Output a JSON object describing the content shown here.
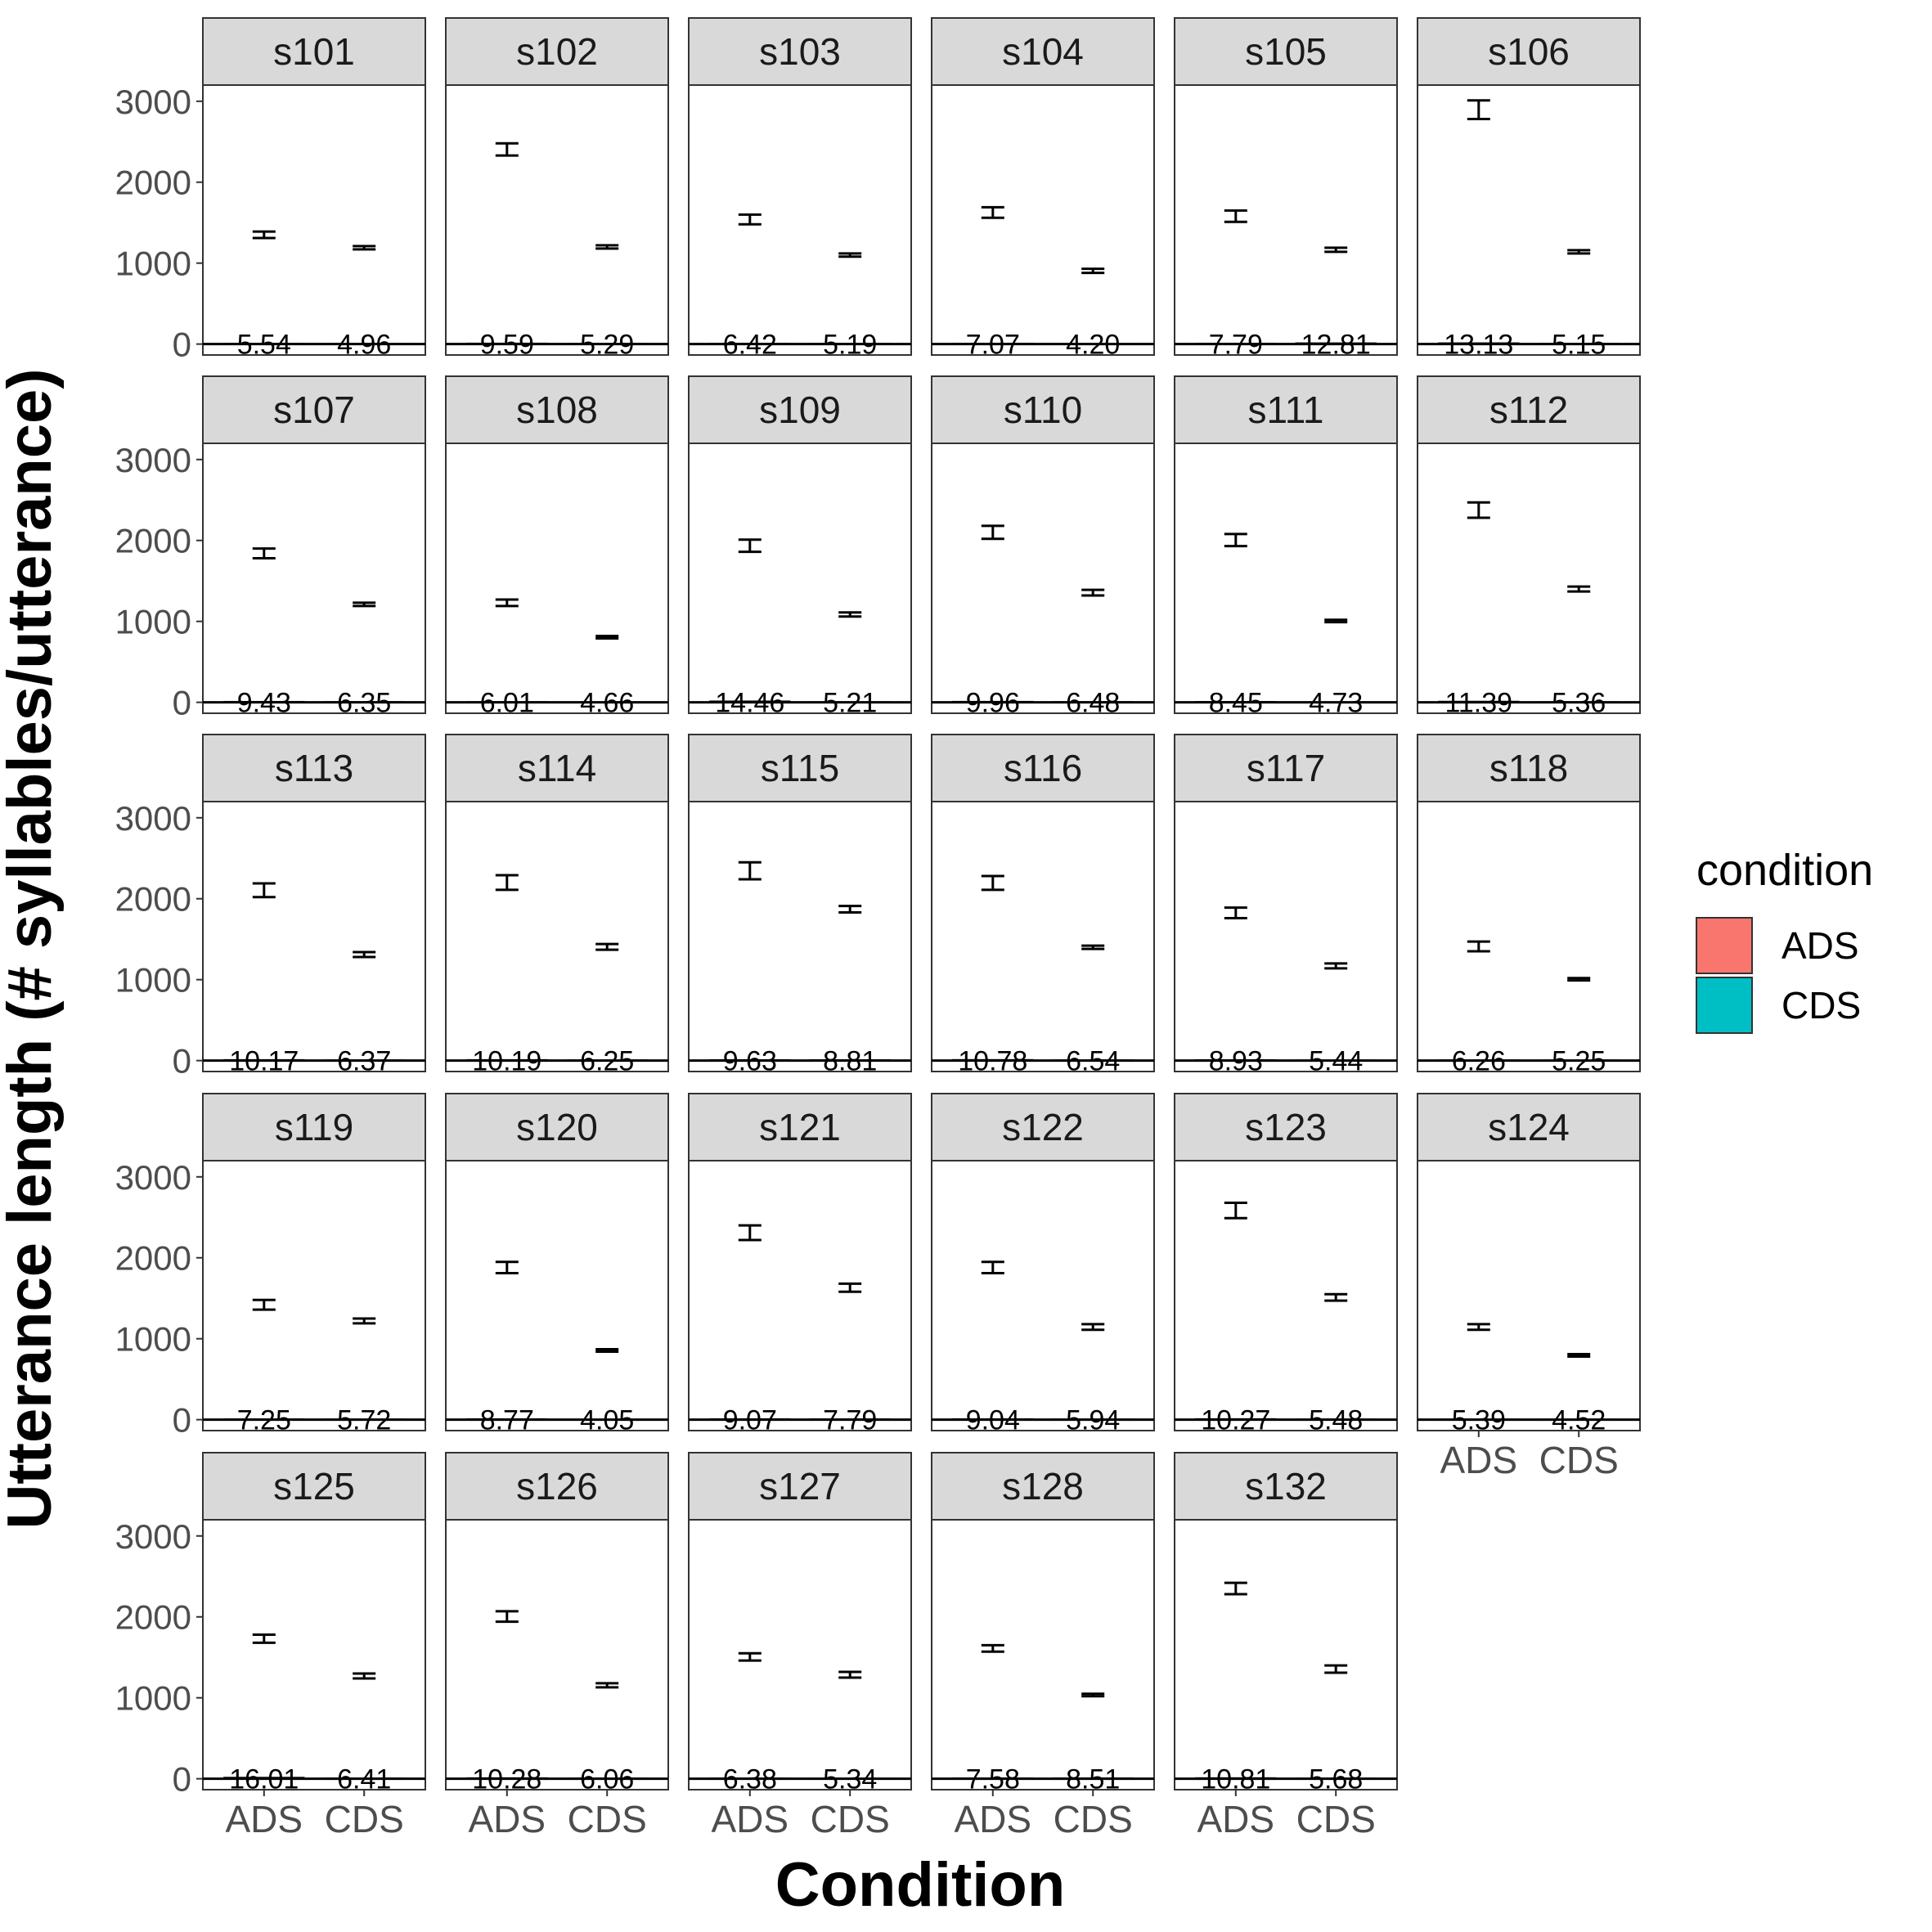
{
  "chart_data": {
    "type": "bar",
    "facet_by": "participant",
    "facet_columns": 6,
    "xlabel": "Condition",
    "ylabel": "Utterance length (# syllables/utterance)",
    "categories": [
      "ADS",
      "CDS"
    ],
    "ylim": [
      0,
      3200
    ],
    "yticks": [
      0,
      1000,
      2000,
      3000
    ],
    "legend": {
      "title": "condition",
      "position": "right",
      "items": [
        {
          "label": "ADS",
          "color": "#F8766D"
        },
        {
          "label": "CDS",
          "color": "#00BFC4"
        }
      ]
    },
    "colors": {
      "ADS": "#F8766D",
      "CDS": "#00BFC4"
    },
    "panels": [
      {
        "id": "s101",
        "values": [
          5.54,
          4.96
        ],
        "bar_labels": [
          "5.54",
          "4.96"
        ],
        "error": {
          "ADS": [
            1310,
            1390
          ],
          "CDS": [
            1170,
            1210
          ]
        }
      },
      {
        "id": "s102",
        "values": [
          9.59,
          5.29
        ],
        "bar_labels": [
          "9.59",
          "5.29"
        ],
        "error": {
          "ADS": [
            2330,
            2480
          ],
          "CDS": [
            1180,
            1220
          ]
        }
      },
      {
        "id": "s103",
        "values": [
          6.42,
          5.19
        ],
        "bar_labels": [
          "6.42",
          "5.19"
        ],
        "error": {
          "ADS": [
            1480,
            1600
          ],
          "CDS": [
            1080,
            1120
          ]
        }
      },
      {
        "id": "s104",
        "values": [
          7.07,
          4.2
        ],
        "bar_labels": [
          "7.07",
          "4.20"
        ],
        "error": {
          "ADS": [
            1560,
            1690
          ],
          "CDS": [
            880,
            930
          ]
        }
      },
      {
        "id": "s105",
        "values": [
          7.79,
          12.81
        ],
        "bar_labels": [
          "7.79",
          "12.81"
        ],
        "error": {
          "ADS": [
            1510,
            1650
          ],
          "CDS": [
            1140,
            1190
          ]
        }
      },
      {
        "id": "s106",
        "values": [
          13.13,
          5.15
        ],
        "bar_labels": [
          "13.13",
          "5.15"
        ],
        "error": {
          "ADS": [
            2780,
            3010
          ],
          "CDS": [
            1120,
            1160
          ]
        }
      },
      {
        "id": "s107",
        "values": [
          9.43,
          6.35
        ],
        "bar_labels": [
          "9.43",
          "6.35"
        ],
        "error": {
          "ADS": [
            1780,
            1900
          ],
          "CDS": [
            1190,
            1230
          ]
        }
      },
      {
        "id": "s108",
        "values": [
          6.01,
          4.66
        ],
        "bar_labels": [
          "6.01",
          "4.66"
        ],
        "error": {
          "ADS": [
            1190,
            1270
          ],
          "CDS": [
            790,
            820
          ]
        }
      },
      {
        "id": "s109",
        "values": [
          14.46,
          5.21
        ],
        "bar_labels": [
          "14.46",
          "5.21"
        ],
        "error": {
          "ADS": [
            1860,
            2010
          ],
          "CDS": [
            1060,
            1110
          ]
        }
      },
      {
        "id": "s110",
        "values": [
          9.96,
          6.48
        ],
        "bar_labels": [
          "9.96",
          "6.48"
        ],
        "error": {
          "ADS": [
            2020,
            2180
          ],
          "CDS": [
            1320,
            1390
          ]
        }
      },
      {
        "id": "s111",
        "values": [
          8.45,
          4.73
        ],
        "bar_labels": [
          "8.45",
          "4.73"
        ],
        "error": {
          "ADS": [
            1930,
            2080
          ],
          "CDS": [
            990,
            1020
          ]
        }
      },
      {
        "id": "s112",
        "values": [
          11.39,
          5.36
        ],
        "bar_labels": [
          "11.39",
          "5.36"
        ],
        "error": {
          "ADS": [
            2280,
            2470
          ],
          "CDS": [
            1370,
            1430
          ]
        }
      },
      {
        "id": "s113",
        "values": [
          10.17,
          6.37
        ],
        "bar_labels": [
          "10.17",
          "6.37"
        ],
        "error": {
          "ADS": [
            2020,
            2190
          ],
          "CDS": [
            1280,
            1340
          ]
        }
      },
      {
        "id": "s114",
        "values": [
          10.19,
          6.25
        ],
        "bar_labels": [
          "10.19",
          "6.25"
        ],
        "error": {
          "ADS": [
            2110,
            2290
          ],
          "CDS": [
            1370,
            1440
          ]
        }
      },
      {
        "id": "s115",
        "values": [
          9.63,
          8.81
        ],
        "bar_labels": [
          "9.63",
          "8.81"
        ],
        "error": {
          "ADS": [
            2240,
            2450
          ],
          "CDS": [
            1830,
            1910
          ]
        }
      },
      {
        "id": "s116",
        "values": [
          10.78,
          6.54
        ],
        "bar_labels": [
          "10.78",
          "6.54"
        ],
        "error": {
          "ADS": [
            2110,
            2280
          ],
          "CDS": [
            1380,
            1420
          ]
        }
      },
      {
        "id": "s117",
        "values": [
          8.93,
          5.44
        ],
        "bar_labels": [
          "8.93",
          "5.44"
        ],
        "error": {
          "ADS": [
            1760,
            1890
          ],
          "CDS": [
            1140,
            1200
          ]
        }
      },
      {
        "id": "s118",
        "values": [
          6.26,
          5.25
        ],
        "bar_labels": [
          "6.26",
          "5.25"
        ],
        "error": {
          "ADS": [
            1350,
            1470
          ],
          "CDS": [
            990,
            1020
          ]
        }
      },
      {
        "id": "s119",
        "values": [
          7.25,
          5.72
        ],
        "bar_labels": [
          "7.25",
          "5.72"
        ],
        "error": {
          "ADS": [
            1360,
            1480
          ],
          "CDS": [
            1190,
            1250
          ]
        }
      },
      {
        "id": "s120",
        "values": [
          8.77,
          4.05
        ],
        "bar_labels": [
          "8.77",
          "4.05"
        ],
        "error": {
          "ADS": [
            1810,
            1950
          ],
          "CDS": [
            840,
            870
          ]
        }
      },
      {
        "id": "s121",
        "values": [
          9.07,
          7.79
        ],
        "bar_labels": [
          "9.07",
          "7.79"
        ],
        "error": {
          "ADS": [
            2220,
            2400
          ],
          "CDS": [
            1580,
            1680
          ]
        }
      },
      {
        "id": "s122",
        "values": [
          9.04,
          5.94
        ],
        "bar_labels": [
          "9.04",
          "5.94"
        ],
        "error": {
          "ADS": [
            1810,
            1950
          ],
          "CDS": [
            1110,
            1180
          ]
        }
      },
      {
        "id": "s123",
        "values": [
          10.27,
          5.48
        ],
        "bar_labels": [
          "10.27",
          "5.48"
        ],
        "error": {
          "ADS": [
            2490,
            2680
          ],
          "CDS": [
            1470,
            1550
          ]
        }
      },
      {
        "id": "s124",
        "values": [
          5.39,
          4.52
        ],
        "bar_labels": [
          "5.39",
          "4.52"
        ],
        "error": {
          "ADS": [
            1110,
            1180
          ],
          "CDS": [
            780,
            810
          ]
        }
      },
      {
        "id": "s125",
        "values": [
          16.01,
          6.41
        ],
        "bar_labels": [
          "16.01",
          "6.41"
        ],
        "error": {
          "ADS": [
            1680,
            1780
          ],
          "CDS": [
            1240,
            1300
          ]
        }
      },
      {
        "id": "s126",
        "values": [
          10.28,
          6.06
        ],
        "bar_labels": [
          "10.28",
          "6.06"
        ],
        "error": {
          "ADS": [
            1940,
            2070
          ],
          "CDS": [
            1130,
            1180
          ]
        }
      },
      {
        "id": "s127",
        "values": [
          6.38,
          5.34
        ],
        "bar_labels": [
          "6.38",
          "5.34"
        ],
        "error": {
          "ADS": [
            1460,
            1550
          ],
          "CDS": [
            1250,
            1320
          ]
        }
      },
      {
        "id": "s128",
        "values": [
          7.58,
          8.51
        ],
        "bar_labels": [
          "7.58",
          "8.51"
        ],
        "error": {
          "ADS": [
            1570,
            1650
          ],
          "CDS": [
            1020,
            1050
          ]
        }
      },
      {
        "id": "s132",
        "values": [
          10.81,
          5.68
        ],
        "bar_labels": [
          "10.81",
          "5.68"
        ],
        "error": {
          "ADS": [
            2280,
            2420
          ],
          "CDS": [
            1310,
            1400
          ]
        }
      }
    ]
  }
}
